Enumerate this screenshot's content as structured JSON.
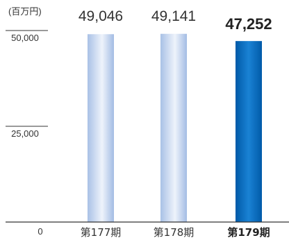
{
  "chart_data": {
    "type": "bar",
    "unit_label": "(百万円)",
    "categories": [
      "第177期",
      "第178期",
      "第179期"
    ],
    "values": [
      49046,
      49141,
      47252
    ],
    "value_labels": [
      "49,046",
      "49,141",
      "47,252"
    ],
    "highlight_index": 2,
    "yticks": [
      {
        "value": 0,
        "label": "0"
      },
      {
        "value": 25000,
        "label": "25,000"
      },
      {
        "value": 50000,
        "label": "50,000"
      }
    ],
    "ylim": [
      0,
      50000
    ],
    "grid": false,
    "colors": {
      "bar_light": "#a9c1e6",
      "bar_light_highlight": "#eef3fb",
      "bar_dark": "#0a6fc2",
      "bar_dark_edge": "#005aa8",
      "axis": "#333333",
      "text": "#333333",
      "highlight_text": "#222222"
    }
  }
}
